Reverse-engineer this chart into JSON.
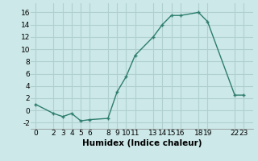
{
  "x": [
    0,
    2,
    3,
    4,
    5,
    6,
    8,
    9,
    10,
    11,
    13,
    14,
    15,
    16,
    18,
    19,
    22,
    23
  ],
  "y": [
    1,
    -0.5,
    -1,
    -0.5,
    -1.7,
    -1.5,
    -1.3,
    3,
    5.5,
    9,
    12,
    14,
    15.5,
    15.5,
    16,
    14.5,
    2.5,
    2.5
  ],
  "line_color": "#2e7d6e",
  "marker_color": "#2e7d6e",
  "bg_color": "#cce8e8",
  "grid_color": "#b0d0d0",
  "xlabel": "Humidex (Indice chaleur)",
  "ylabel": "",
  "xlim": [
    -0.5,
    24.0
  ],
  "ylim": [
    -3.0,
    17.5
  ],
  "xticks": [
    0,
    2,
    3,
    4,
    5,
    6,
    8,
    9,
    10,
    11,
    13,
    14,
    15,
    16,
    18,
    19,
    22,
    23
  ],
  "yticks": [
    -2,
    0,
    2,
    4,
    6,
    8,
    10,
    12,
    14,
    16
  ],
  "xlabel_fontsize": 7.5,
  "tick_fontsize": 6.5
}
